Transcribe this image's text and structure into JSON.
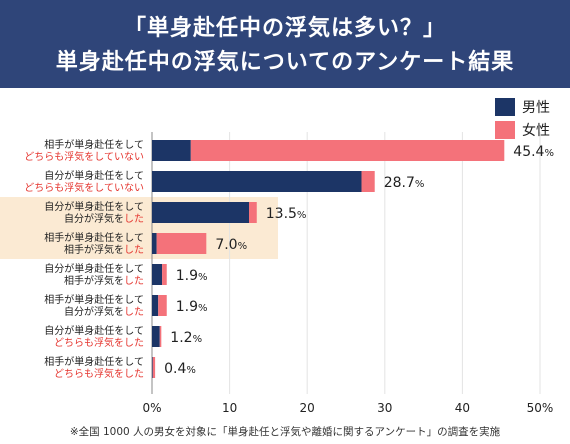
{
  "title": {
    "line1": "「単身赴任中の浮気は多い？」",
    "line2": "単身赴任中の浮気についてのアンケート結果"
  },
  "colors": {
    "header_bg": "#2f4579",
    "male": "#1c3566",
    "female": "#f4727a",
    "highlight": "#fbead3",
    "red_text": "#e5352f"
  },
  "footnote": "※全国 1000 人の男女を対象に「単身赴任と浮気や離婚に関するアンケート」の調査を実施",
  "chart_data": {
    "type": "bar",
    "orientation": "horizontal",
    "stacked": true,
    "xlim": [
      0,
      50
    ],
    "xticks": [
      "0%",
      "10",
      "20",
      "30",
      "40",
      "50%"
    ],
    "legend": {
      "position": "top-right"
    },
    "series": [
      {
        "name": "男性",
        "values": [
          5.0,
          27.0,
          12.5,
          0.6,
          1.3,
          0.8,
          1.0,
          0.1
        ]
      },
      {
        "name": "女性",
        "values": [
          40.4,
          1.7,
          1.0,
          6.4,
          0.6,
          1.1,
          0.2,
          0.3
        ]
      }
    ],
    "categories": [
      {
        "line1": "相手が単身赴任をして",
        "line2_black": "",
        "line2_red": "どちらも浮気をしていない"
      },
      {
        "line1": "自分が単身赴任をして",
        "line2_black": "",
        "line2_red": "どちらも浮気をしていない"
      },
      {
        "line1": "自分が単身赴任をして",
        "line2_black": "自分が浮気を",
        "line2_red": "した"
      },
      {
        "line1": "相手が単身赴任をして",
        "line2_black": "相手が浮気を",
        "line2_red": "した"
      },
      {
        "line1": "自分が単身赴任をして",
        "line2_black": "相手が浮気を",
        "line2_red": "した"
      },
      {
        "line1": "相手が単身赴任をして",
        "line2_black": "自分が浮気を",
        "line2_red": "した"
      },
      {
        "line1": "自分が単身赴任をして",
        "line2_black": "",
        "line2_red": "どちらも浮気をした"
      },
      {
        "line1": "相手が単身赴任をして",
        "line2_black": "",
        "line2_red": "どちらも浮気をした"
      }
    ],
    "totals": [
      "45.4",
      "28.7",
      "13.5",
      "7.0",
      "1.9",
      "1.9",
      "1.2",
      "0.4"
    ],
    "total_unit": "%",
    "highlighted_rows": [
      2,
      3
    ]
  }
}
